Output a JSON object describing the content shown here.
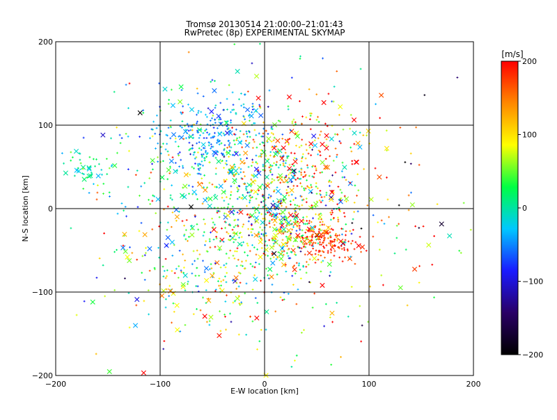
{
  "chart_data": {
    "type": "scatter",
    "title": "Tromsø 20130514 21:00:00–21:01:43",
    "subtitle": "RwPretec (8p) EXPERIMENTAL SKYMAP",
    "xlabel": "E-W location [km]",
    "ylabel": "N-S location [km]",
    "xlim": [
      -200,
      200
    ],
    "ylim": [
      -200,
      200
    ],
    "xticks": [
      -200,
      -100,
      0,
      100,
      200
    ],
    "yticks": [
      -200,
      -100,
      0,
      100,
      200
    ],
    "grid_lines": [
      -100,
      0,
      100
    ],
    "grid": true,
    "marker_styles": [
      "plus",
      "x"
    ],
    "colorbar": {
      "label": "[m/s]",
      "min": -200,
      "max": 200,
      "ticks": [
        200,
        100,
        0,
        -100,
        -200
      ],
      "colormap": "rainbow",
      "stops": [
        "#000000",
        "#2a0066",
        "#1a1aff",
        "#00c8ff",
        "#00ff44",
        "#ffff00",
        "#ff8800",
        "#ff0000"
      ]
    },
    "clusters": [
      {
        "cx": -40,
        "cy": 55,
        "sx": 50,
        "sy": 45,
        "n": 330,
        "v": 0,
        "vs": 55
      },
      {
        "cx": -55,
        "cy": 85,
        "sx": 25,
        "sy": 15,
        "n": 140,
        "v": -45,
        "vs": 25
      },
      {
        "cx": -30,
        "cy": 120,
        "sx": 18,
        "sy": 18,
        "n": 45,
        "v": -40,
        "vs": 30
      },
      {
        "cx": 10,
        "cy": 0,
        "sx": 35,
        "sy": 40,
        "n": 420,
        "v": 60,
        "vs": 100
      },
      {
        "cx": 55,
        "cy": -40,
        "sx": 18,
        "sy": 12,
        "n": 170,
        "v": 180,
        "vs": 25
      },
      {
        "cx": 25,
        "cy": -30,
        "sx": 20,
        "sy": 14,
        "n": 110,
        "v": 70,
        "vs": 55
      },
      {
        "cx": 35,
        "cy": 55,
        "sx": 35,
        "sy": 40,
        "n": 170,
        "v": 140,
        "vs": 70
      },
      {
        "cx": -50,
        "cy": -70,
        "sx": 45,
        "sy": 45,
        "n": 270,
        "v": 50,
        "vs": 75
      },
      {
        "cx": -165,
        "cy": 45,
        "sx": 12,
        "sy": 12,
        "n": 45,
        "v": 10,
        "vs": 25
      },
      {
        "cx": 0,
        "cy": 0,
        "sx": 105,
        "sy": 100,
        "n": 320,
        "v": 60,
        "vs": 110
      }
    ]
  }
}
